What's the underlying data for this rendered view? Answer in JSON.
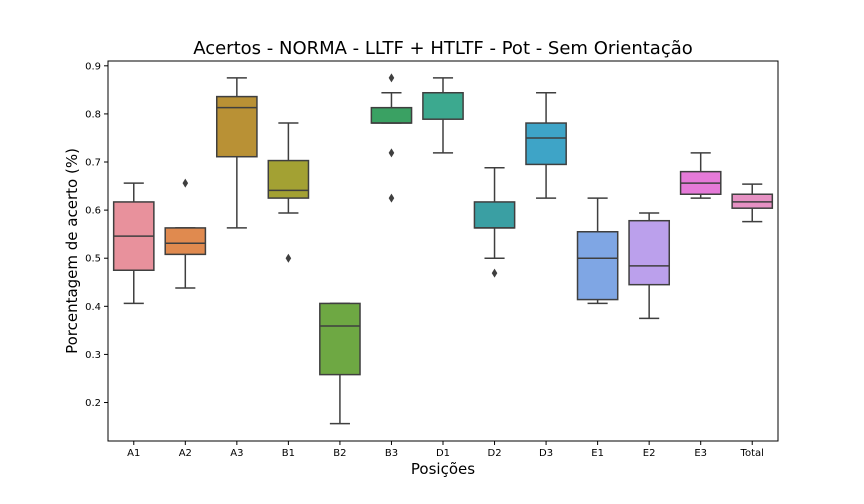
{
  "chart_data": {
    "type": "box",
    "title": "Acertos - NORMA - LLTF + HTLTF - Pot - Sem Orientação",
    "xlabel": "Posições",
    "ylabel": "Porcentagem de acerto (%)",
    "ylim": [
      0.12,
      0.91
    ],
    "yticks": [
      "0.2",
      "0.3",
      "0.4",
      "0.5",
      "0.6",
      "0.7",
      "0.8",
      "0.9"
    ],
    "grid": false,
    "categories": [
      "A1",
      "A2",
      "A3",
      "B1",
      "B2",
      "B3",
      "D1",
      "D2",
      "D3",
      "E1",
      "E2",
      "E3",
      "Total"
    ],
    "boxes": [
      {
        "name": "A1",
        "color": "#e8919c",
        "whisker_low": 0.406,
        "q1": 0.475,
        "median": 0.546,
        "q3": 0.617,
        "whisker_high": 0.656,
        "outliers": []
      },
      {
        "name": "A2",
        "color": "#e08a4f",
        "whisker_low": 0.438,
        "q1": 0.508,
        "median": 0.531,
        "q3": 0.563,
        "whisker_high": 0.563,
        "outliers": [
          0.656
        ]
      },
      {
        "name": "A3",
        "color": "#b99135",
        "whisker_low": 0.563,
        "q1": 0.711,
        "median": 0.813,
        "q3": 0.836,
        "whisker_high": 0.875,
        "outliers": []
      },
      {
        "name": "B1",
        "color": "#a3a133",
        "whisker_low": 0.594,
        "q1": 0.625,
        "median": 0.641,
        "q3": 0.703,
        "whisker_high": 0.781,
        "outliers": [
          0.5
        ]
      },
      {
        "name": "B2",
        "color": "#6ea843",
        "whisker_low": 0.156,
        "q1": 0.258,
        "median": 0.359,
        "q3": 0.406,
        "whisker_high": 0.406,
        "outliers": []
      },
      {
        "name": "B3",
        "color": "#3aa163",
        "whisker_low": 0.781,
        "q1": 0.781,
        "median": 0.781,
        "q3": 0.813,
        "whisker_high": 0.844,
        "outliers": [
          0.875,
          0.719,
          0.625
        ]
      },
      {
        "name": "D1",
        "color": "#3ca98f",
        "whisker_low": 0.719,
        "q1": 0.789,
        "median": 0.844,
        "q3": 0.844,
        "whisker_high": 0.875,
        "outliers": []
      },
      {
        "name": "D2",
        "color": "#3a9fa3",
        "whisker_low": 0.5,
        "q1": 0.563,
        "median": 0.563,
        "q3": 0.617,
        "whisker_high": 0.688,
        "outliers": [
          0.469
        ]
      },
      {
        "name": "D3",
        "color": "#3ea4c7",
        "whisker_low": 0.625,
        "q1": 0.695,
        "median": 0.75,
        "q3": 0.781,
        "whisker_high": 0.844,
        "outliers": []
      },
      {
        "name": "E1",
        "color": "#7fa6e4",
        "whisker_low": 0.406,
        "q1": 0.414,
        "median": 0.5,
        "q3": 0.555,
        "whisker_high": 0.625,
        "outliers": []
      },
      {
        "name": "E2",
        "color": "#bba0ec",
        "whisker_low": 0.375,
        "q1": 0.445,
        "median": 0.484,
        "q3": 0.578,
        "whisker_high": 0.594,
        "outliers": []
      },
      {
        "name": "E3",
        "color": "#e57ad8",
        "whisker_low": 0.625,
        "q1": 0.633,
        "median": 0.656,
        "q3": 0.68,
        "whisker_high": 0.719,
        "outliers": []
      },
      {
        "name": "Total",
        "color": "#e691c3",
        "whisker_low": 0.576,
        "q1": 0.604,
        "median": 0.617,
        "q3": 0.633,
        "whisker_high": 0.654,
        "outliers": []
      }
    ]
  }
}
